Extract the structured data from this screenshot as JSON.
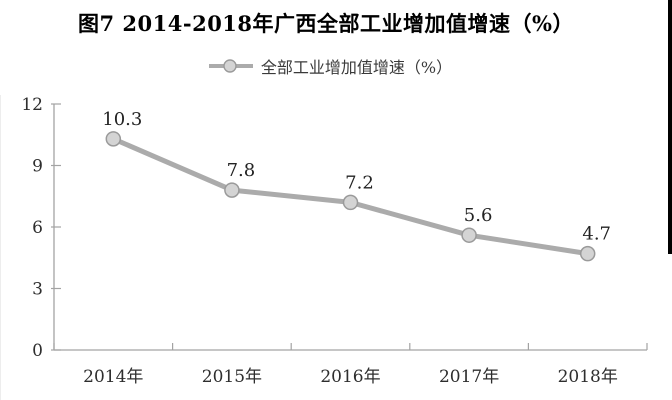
{
  "title": "图7 2014-2018年广西全部工业增加值增速（%）",
  "legend": {
    "label": "全部工业增加值增速（%）"
  },
  "chart_data": {
    "type": "line",
    "title": "图7 2014-2018年广西全部工业增加值增速（%）",
    "categories": [
      "2014年",
      "2015年",
      "2016年",
      "2017年",
      "2018年"
    ],
    "series": [
      {
        "name": "全部工业增加值增速（%）",
        "values": [
          10.3,
          7.8,
          7.2,
          5.6,
          4.7
        ]
      }
    ],
    "xlabel": "",
    "ylabel": "",
    "ylim": [
      0,
      12
    ],
    "yticks": [
      0,
      3,
      6,
      9,
      12
    ],
    "grid": false,
    "legend_position": "top",
    "data_labels_shown": true
  },
  "colors": {
    "line": "#ababab",
    "marker_fill": "#d4d4d4",
    "marker_stroke": "#9a9a9a",
    "axis": "#a3a3a3",
    "tick_label": "#2e2e2e",
    "data_label": "#232323",
    "title": "#000000"
  }
}
